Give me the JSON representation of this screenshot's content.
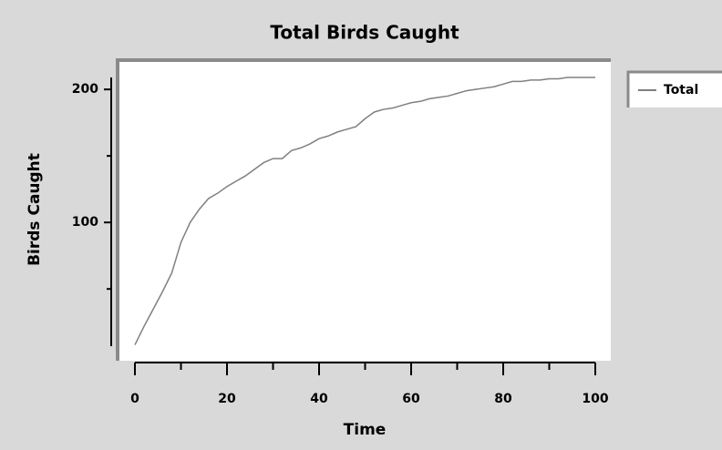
{
  "chart_data": {
    "type": "line",
    "title": "Total Birds Caught",
    "xlabel": "Time",
    "ylabel": "Birds Caught",
    "x": [
      0,
      2,
      4,
      6,
      8,
      10,
      12,
      14,
      16,
      18,
      20,
      22,
      24,
      26,
      28,
      30,
      32,
      34,
      36,
      38,
      40,
      42,
      44,
      46,
      48,
      50,
      52,
      54,
      56,
      58,
      60,
      62,
      64,
      66,
      68,
      70,
      72,
      74,
      76,
      78,
      80,
      82,
      84,
      86,
      88,
      90,
      92,
      94,
      96,
      98,
      100
    ],
    "series": [
      {
        "name": "Total",
        "color": "#808080",
        "values": [
          8,
          22,
          35,
          48,
          62,
          85,
          100,
          110,
          118,
          122,
          127,
          131,
          135,
          140,
          145,
          148,
          148,
          154,
          156,
          159,
          163,
          165,
          168,
          170,
          172,
          178,
          183,
          185,
          186,
          188,
          190,
          191,
          193,
          194,
          195,
          197,
          199,
          200,
          201,
          202,
          204,
          206,
          206,
          207,
          207,
          208,
          208,
          209,
          209,
          209,
          209
        ]
      }
    ],
    "xlim": [
      0,
      100
    ],
    "xticks": [
      0,
      20,
      40,
      60,
      80,
      100
    ],
    "xminorticks": [
      10,
      30,
      50,
      70,
      90
    ],
    "ylim": [
      7,
      209
    ],
    "yticks": [
      100,
      200
    ],
    "yminorticks": [
      50,
      150
    ],
    "legend": "right"
  }
}
